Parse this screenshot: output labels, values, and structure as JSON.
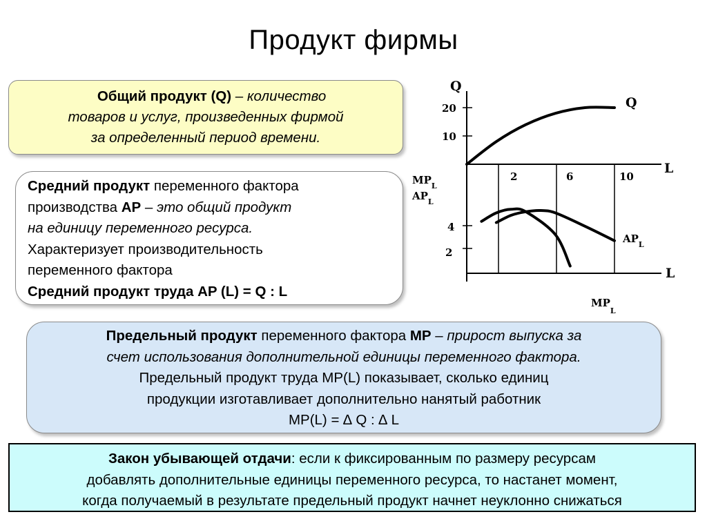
{
  "title": "Продукт фирмы",
  "total_product": {
    "term": "Общий продукт (Q)",
    "dash": " – ",
    "def1": "количество",
    "def2": "товаров и услуг, произведенных фирмой",
    "def3": "за определенный период времени."
  },
  "average_product": {
    "term": "Средний продукт",
    "line1_rest": " переменного фактора",
    "line2_start": "производства ",
    "line2_ap": "AP",
    "line2_dash": " – ",
    "line2_def": "это общий продукт",
    "line3": "на единицу переменного ресурса.",
    "line4": "Характеризует производительность",
    "line5": "переменного фактора",
    "line6": "Средний продукт труда AP (L) = Q : L"
  },
  "marginal_product": {
    "term": "Предельный продукт",
    "line1_mid": " переменного фактора ",
    "line1_mp": "MP",
    "line1_dash": "  – ",
    "line1_def": "прирост выпуска за",
    "line2": "счет использования дополнительной единицы переменного фактора.",
    "line3": "Предельный продукт труда MP(L) показывает, сколько единиц",
    "line4": "продукции изготавливает дополнительно нанятый работник",
    "line5": "MP(L) =  ∆ Q : ∆ L"
  },
  "law": {
    "term": "Закон убывающей отдачи",
    "line1_rest": ": если к фиксированным по размеру ресурсам",
    "line2": "добавлять дополнительные единицы переменного ресурса, то настанет момент,",
    "line3": "когда получаемый в результате  предельный продукт начнет неуклонно снижаться"
  },
  "chart_data": [
    {
      "type": "line",
      "xlabel": "L",
      "ylabel": "Q",
      "x_ticks": [
        "2",
        "6",
        "10"
      ],
      "y_ticks": [
        "10",
        "20"
      ],
      "series": [
        {
          "name": "Q",
          "x": [
            0,
            2,
            4,
            6,
            8,
            10
          ],
          "values": [
            0,
            8,
            14,
            18,
            20,
            20
          ]
        }
      ]
    },
    {
      "type": "line",
      "xlabel": "L",
      "ylabel_mp": "MP",
      "ylabel_ap": "AP",
      "subscript": "L",
      "y_ticks": [
        "2",
        "4"
      ],
      "series": [
        {
          "name": "MP",
          "x": [
            1,
            2,
            3,
            4,
            6,
            7
          ],
          "values": [
            4.3,
            5,
            5.3,
            5.1,
            3.2,
            0.6
          ]
        },
        {
          "name": "AP",
          "x": [
            2,
            3,
            4,
            5,
            6,
            8,
            10
          ],
          "values": [
            4.2,
            4.8,
            5.1,
            5.2,
            5.0,
            3.9,
            2.7
          ]
        }
      ]
    }
  ]
}
